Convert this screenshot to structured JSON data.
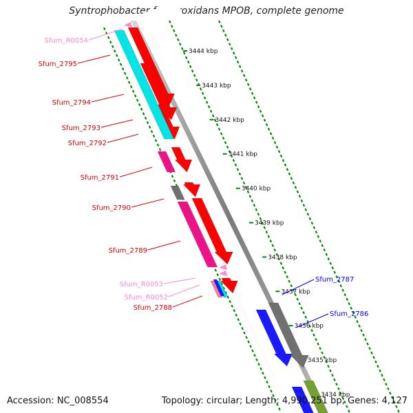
{
  "title": "Syntrophobacter fumaroxidans MPOB, complete genome",
  "footer": {
    "accession": "Accession: NC_008554",
    "summary": "Topology: circular; Length: 4,990,251 bp; Genes: 4,127"
  },
  "colors": {
    "red": "#ff0000",
    "cyan": "#00e5e5",
    "magenta": "#ee1188",
    "gray": "#707070",
    "blue": "#1a1aff",
    "olive": "#77a033",
    "pink": "#ff88cc",
    "scale_dots": "#008800"
  },
  "scale": {
    "unit": "kbp",
    "ticks": [
      "3444 kbp",
      "3443 kbp",
      "3442 kbp",
      "3441 kbp",
      "3440 kbp",
      "3439 kbp",
      "3438 kbp",
      "3437 kbp",
      "3436 kbp",
      "3435 kbp",
      "3434 kbp"
    ]
  },
  "gene_labels": [
    {
      "text": "Sfum_R0054",
      "color": "#ff88cc"
    },
    {
      "text": "Sfum_2795",
      "color": "#dd0000"
    },
    {
      "text": "Sfum_2794",
      "color": "#dd0000"
    },
    {
      "text": "Sfum_2793",
      "color": "#dd0000"
    },
    {
      "text": "Sfum_2792",
      "color": "#dd0000"
    },
    {
      "text": "Sfum_2791",
      "color": "#dd0000"
    },
    {
      "text": "Sfum_2790",
      "color": "#dd0000"
    },
    {
      "text": "Sfum_2789",
      "color": "#dd0000"
    },
    {
      "text": "Sfum_R0053",
      "color": "#ff88cc"
    },
    {
      "text": "Sfum_R0052",
      "color": "#ff88cc"
    },
    {
      "text": "Sfum_2788",
      "color": "#dd0000"
    },
    {
      "text": "Sfum_2787",
      "color": "#0000ee"
    },
    {
      "text": "Sfum_2786",
      "color": "#0000ee"
    }
  ]
}
